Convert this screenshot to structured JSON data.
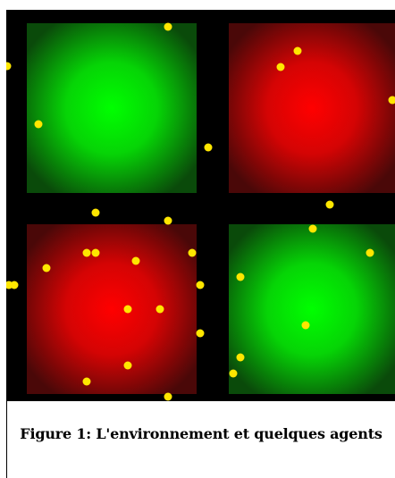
{
  "figure": {
    "caption": "Figure 1: L'environnement et quelques agents",
    "colors": {
      "background": "#000000",
      "green_center": "#00ff00",
      "green_edge": "#0a4a0a",
      "red_center": "#ff0000",
      "red_edge": "#4a0808",
      "agent": "#ffe600"
    },
    "cells": [
      {
        "name": "cell-top-left",
        "type": "green"
      },
      {
        "name": "cell-top-right",
        "type": "red"
      },
      {
        "name": "cell-bottom-left",
        "type": "red"
      },
      {
        "name": "cell-bottom-right",
        "type": "green"
      }
    ]
  }
}
